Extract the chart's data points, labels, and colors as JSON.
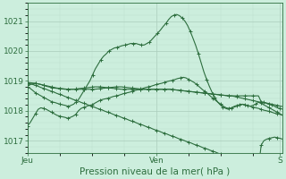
{
  "bg_color": "#cceedd",
  "plot_bg_color": "#cceedd",
  "grid_color_major": "#aaccbb",
  "grid_color_minor": "#bbddcc",
  "line_color": "#2d6e3e",
  "xlabel": "Pression niveau de la mer( hPa )",
  "xlabel_color": "#2d6e3e",
  "tick_color": "#2d6e3e",
  "ylim": [
    1016.6,
    1021.6
  ],
  "yticks": [
    1017,
    1018,
    1019,
    1020,
    1021
  ],
  "xtick_labels": [
    "Jeu",
    "Ven",
    "S"
  ],
  "xtick_positions": [
    0,
    48,
    94
  ],
  "total_points": 96,
  "line_main": [
    1018.8,
    1018.75,
    1018.68,
    1018.6,
    1018.55,
    1018.5,
    1018.45,
    1018.4,
    1018.35,
    1018.3,
    1018.28,
    1018.25,
    1018.22,
    1018.2,
    1018.18,
    1018.15,
    1018.18,
    1018.22,
    1018.3,
    1018.4,
    1018.55,
    1018.7,
    1018.85,
    1019.0,
    1019.2,
    1019.4,
    1019.55,
    1019.7,
    1019.82,
    1019.9,
    1020.0,
    1020.05,
    1020.1,
    1020.12,
    1020.15,
    1020.18,
    1020.2,
    1020.22,
    1020.25,
    1020.25,
    1020.25,
    1020.22,
    1020.2,
    1020.2,
    1020.25,
    1020.3,
    1020.4,
    1020.5,
    1020.6,
    1020.7,
    1020.82,
    1020.92,
    1021.05,
    1021.15,
    1021.2,
    1021.22,
    1021.18,
    1021.1,
    1021.0,
    1020.85,
    1020.65,
    1020.42,
    1020.18,
    1019.9,
    1019.6,
    1019.3,
    1019.05,
    1018.82,
    1018.62,
    1018.45,
    1018.3,
    1018.2,
    1018.12,
    1018.08,
    1018.05,
    1018.08,
    1018.12,
    1018.15,
    1018.2,
    1018.22,
    1018.2,
    1018.18,
    1018.15,
    1018.18,
    1018.22,
    1018.28,
    1018.3,
    1018.28,
    1018.25,
    1018.22,
    1018.2,
    1018.15,
    1018.1,
    1018.08,
    1018.05
  ],
  "line_diag": [
    1018.92,
    1018.9,
    1018.88,
    1018.85,
    1018.82,
    1018.78,
    1018.75,
    1018.72,
    1018.68,
    1018.65,
    1018.62,
    1018.58,
    1018.55,
    1018.52,
    1018.48,
    1018.45,
    1018.42,
    1018.38,
    1018.35,
    1018.32,
    1018.28,
    1018.25,
    1018.22,
    1018.18,
    1018.15,
    1018.12,
    1018.08,
    1018.05,
    1018.02,
    1017.98,
    1017.95,
    1017.92,
    1017.88,
    1017.85,
    1017.82,
    1017.78,
    1017.75,
    1017.72,
    1017.68,
    1017.65,
    1017.62,
    1017.58,
    1017.55,
    1017.52,
    1017.48,
    1017.45,
    1017.42,
    1017.38,
    1017.35,
    1017.32,
    1017.28,
    1017.25,
    1017.22,
    1017.18,
    1017.15,
    1017.12,
    1017.08,
    1017.05,
    1017.02,
    1016.98,
    1016.95,
    1016.92,
    1016.88,
    1016.85,
    1016.82,
    1016.78,
    1016.75,
    1016.72,
    1016.68,
    1016.65,
    1016.62,
    1016.58,
    1016.55,
    1016.52,
    1016.48,
    1016.45,
    1016.42,
    1016.38,
    1016.35,
    1016.32,
    1016.28,
    1016.25,
    1016.22,
    1016.18,
    1016.15,
    1016.12,
    1016.08,
    1016.85,
    1017.0,
    1017.05,
    1017.08,
    1017.1,
    1017.12,
    1017.1,
    1017.08,
    1017.05
  ],
  "line_flat1": [
    1018.85,
    1018.88,
    1018.9,
    1018.92,
    1018.9,
    1018.88,
    1018.86,
    1018.84,
    1018.82,
    1018.8,
    1018.78,
    1018.76,
    1018.75,
    1018.74,
    1018.73,
    1018.72,
    1018.72,
    1018.72,
    1018.73,
    1018.74,
    1018.75,
    1018.76,
    1018.77,
    1018.78,
    1018.79,
    1018.8,
    1018.8,
    1018.8,
    1018.79,
    1018.78,
    1018.77,
    1018.76,
    1018.75,
    1018.74,
    1018.73,
    1018.72,
    1018.72,
    1018.72,
    1018.72,
    1018.72,
    1018.72,
    1018.72,
    1018.72,
    1018.72,
    1018.72,
    1018.72,
    1018.72,
    1018.72,
    1018.72,
    1018.72,
    1018.72,
    1018.72,
    1018.72,
    1018.72,
    1018.71,
    1018.7,
    1018.69,
    1018.68,
    1018.67,
    1018.66,
    1018.65,
    1018.64,
    1018.63,
    1018.62,
    1018.61,
    1018.6,
    1018.59,
    1018.58,
    1018.57,
    1018.56,
    1018.55,
    1018.54,
    1018.53,
    1018.52,
    1018.51,
    1018.5,
    1018.5,
    1018.5,
    1018.5,
    1018.5,
    1018.5,
    1018.5,
    1018.5,
    1018.5,
    1018.5,
    1018.5,
    1018.5,
    1018.3,
    1018.28,
    1018.26,
    1018.24,
    1018.22,
    1018.2,
    1018.18,
    1018.16,
    1018.14
  ],
  "line_flat2": [
    1018.95,
    1018.94,
    1018.93,
    1018.92,
    1018.9,
    1018.88,
    1018.85,
    1018.82,
    1018.8,
    1018.78,
    1018.76,
    1018.75,
    1018.74,
    1018.73,
    1018.72,
    1018.72,
    1018.72,
    1018.72,
    1018.72,
    1018.72,
    1018.72,
    1018.72,
    1018.72,
    1018.72,
    1018.72,
    1018.72,
    1018.73,
    1018.74,
    1018.75,
    1018.76,
    1018.77,
    1018.78,
    1018.79,
    1018.8,
    1018.8,
    1018.8,
    1018.79,
    1018.78,
    1018.77,
    1018.76,
    1018.75,
    1018.74,
    1018.73,
    1018.72,
    1018.72,
    1018.72,
    1018.72,
    1018.72,
    1018.72,
    1018.72,
    1018.72,
    1018.72,
    1018.72,
    1018.72,
    1018.71,
    1018.7,
    1018.69,
    1018.68,
    1018.67,
    1018.66,
    1018.65,
    1018.64,
    1018.63,
    1018.62,
    1018.61,
    1018.6,
    1018.59,
    1018.58,
    1018.57,
    1018.56,
    1018.55,
    1018.54,
    1018.53,
    1018.52,
    1018.51,
    1018.5,
    1018.5,
    1018.48,
    1018.46,
    1018.44,
    1018.42,
    1018.4,
    1018.38,
    1018.36,
    1018.34,
    1018.32,
    1018.3,
    1018.25,
    1018.2,
    1018.15,
    1018.1,
    1018.05,
    1018.0,
    1017.95,
    1017.9,
    1017.85
  ],
  "line_zigzag": [
    1017.5,
    1017.6,
    1017.75,
    1017.9,
    1018.05,
    1018.1,
    1018.08,
    1018.05,
    1018.0,
    1017.95,
    1017.9,
    1017.85,
    1017.82,
    1017.8,
    1017.78,
    1017.75,
    1017.78,
    1017.82,
    1017.88,
    1018.0,
    1018.08,
    1018.12,
    1018.15,
    1018.18,
    1018.2,
    1018.25,
    1018.3,
    1018.35,
    1018.38,
    1018.4,
    1018.42,
    1018.45,
    1018.48,
    1018.5,
    1018.52,
    1018.55,
    1018.58,
    1018.6,
    1018.62,
    1018.65,
    1018.68,
    1018.7,
    1018.72,
    1018.75,
    1018.78,
    1018.8,
    1018.82,
    1018.85,
    1018.88,
    1018.9,
    1018.92,
    1018.95,
    1018.98,
    1019.0,
    1019.02,
    1019.05,
    1019.08,
    1019.1,
    1019.12,
    1019.1,
    1019.05,
    1019.0,
    1018.95,
    1018.88,
    1018.8,
    1018.72,
    1018.65,
    1018.58,
    1018.5,
    1018.42,
    1018.35,
    1018.28,
    1018.22,
    1018.15,
    1018.1,
    1018.08,
    1018.1,
    1018.15,
    1018.18,
    1018.2,
    1018.22,
    1018.2,
    1018.18,
    1018.15,
    1018.12,
    1018.1,
    1018.08,
    1018.05,
    1018.02,
    1018.0,
    1017.98,
    1017.95,
    1017.92,
    1017.9,
    1017.88,
    1017.85
  ]
}
